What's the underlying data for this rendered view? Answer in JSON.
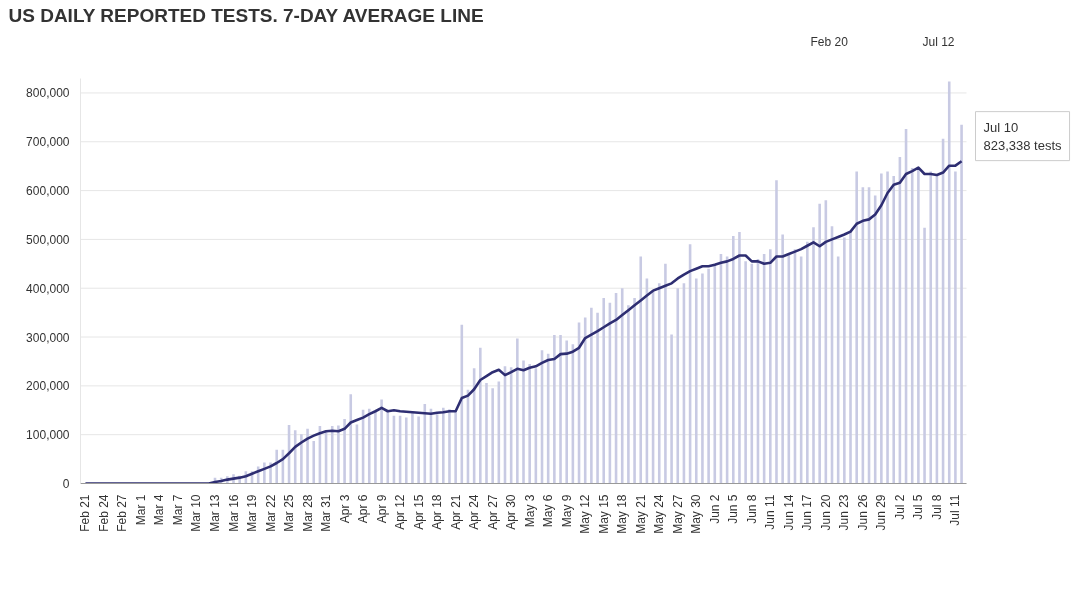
{
  "chart_data": {
    "type": "bar",
    "title": "US DAILY REPORTED TESTS. 7-DAY AVERAGE LINE",
    "categories": [
      "Feb 21",
      null,
      null,
      "Feb 24",
      null,
      null,
      "Feb 27",
      null,
      null,
      "Mar 1",
      null,
      null,
      "Mar 4",
      null,
      null,
      "Mar 7",
      null,
      null,
      "Mar 10",
      null,
      null,
      "Mar 13",
      null,
      null,
      "Mar 16",
      null,
      null,
      "Mar 19",
      null,
      null,
      "Mar 22",
      null,
      null,
      "Mar 25",
      null,
      null,
      "Mar 28",
      null,
      null,
      "Mar 31",
      null,
      null,
      "Apr 3",
      null,
      null,
      "Apr 6",
      null,
      null,
      "Apr 9",
      null,
      null,
      "Apr 12",
      null,
      null,
      "Apr 15",
      null,
      null,
      "Apr 18",
      null,
      null,
      "Apr 21",
      null,
      null,
      "Apr 24",
      null,
      null,
      "Apr 27",
      null,
      null,
      "Apr 30",
      null,
      null,
      "May 3",
      null,
      null,
      "May 6",
      null,
      null,
      "May 9",
      null,
      null,
      "May 12",
      null,
      null,
      "May 15",
      null,
      null,
      "May 18",
      null,
      null,
      "May 21",
      null,
      null,
      "May 24",
      null,
      null,
      "May 27",
      null,
      null,
      "May 30",
      null,
      null,
      "Jun 2",
      null,
      null,
      "Jun 5",
      null,
      null,
      "Jun 8",
      null,
      null,
      "Jun 11",
      null,
      null,
      "Jun 14",
      null,
      null,
      "Jun 17",
      null,
      null,
      "Jun 20",
      null,
      null,
      "Jun 23",
      null,
      null,
      "Jun 26",
      null,
      null,
      "Jun 29",
      null,
      null,
      "Jul 2",
      null,
      null,
      "Jul 5",
      null,
      null,
      "Jul 8",
      null,
      null,
      "Jul 11",
      null
    ],
    "series": [
      {
        "color": "#c8cae3",
        "values": [
          0,
          0,
          0,
          0,
          0,
          0,
          0,
          0,
          0,
          0,
          0,
          0,
          0,
          0,
          0,
          0,
          0,
          0,
          0,
          0,
          0,
          12000,
          12000,
          15000,
          19000,
          16000,
          25000,
          25000,
          35000,
          43000,
          43000,
          69000,
          69000,
          120000,
          109000,
          101000,
          112000,
          87000,
          118000,
          108000,
          118000,
          119000,
          132000,
          183000,
          121000,
          151000,
          153000,
          150000,
          172000,
          150000,
          139000,
          139000,
          135000,
          145000,
          137000,
          163000,
          153000,
          142000,
          155000,
          152000,
          149000,
          325000,
          192000,
          236000,
          278000,
          206000,
          195000,
          209000,
          240000,
          238000,
          297000,
          252000,
          245000,
          236000,
          273000,
          266000,
          304000,
          304000,
          293000,
          285000,
          330000,
          340000,
          360000,
          350000,
          380000,
          370000,
          390000,
          400000,
          365000,
          380000,
          465000,
          420000,
          395000,
          410000,
          450000,
          305000,
          400000,
          410000,
          490000,
          420000,
          430000,
          440000,
          450000,
          470000,
          465000,
          507000,
          515000,
          455000,
          450000,
          460000,
          470000,
          480000,
          621000,
          510000,
          470000,
          480000,
          465000,
          495000,
          525000,
          573000,
          580000,
          527000,
          465000,
          504000,
          515000,
          639000,
          607000,
          607000,
          590000,
          635000,
          639000,
          630000,
          669000,
          726000,
          646000,
          646000,
          524000,
          639000,
          632000,
          706000,
          823338,
          639000,
          735000
        ]
      },
      {
        "type": "line",
        "color": "#2e2e72",
        "values": [
          0,
          0,
          0,
          0,
          0,
          0,
          0,
          0,
          0,
          0,
          0,
          0,
          0,
          0,
          0,
          0,
          0,
          0,
          0,
          0,
          0,
          3000,
          5000,
          8000,
          10000,
          12000,
          15000,
          20000,
          25000,
          30000,
          35000,
          42000,
          50000,
          62000,
          75000,
          84000,
          92000,
          98000,
          103000,
          107000,
          108000,
          107000,
          112000,
          125000,
          130000,
          135000,
          142000,
          148000,
          155000,
          148000,
          150000,
          148000,
          147000,
          146000,
          145000,
          144000,
          143000,
          145000,
          146000,
          148000,
          148000,
          175000,
          180000,
          193000,
          212000,
          220000,
          228000,
          233000,
          222000,
          228000,
          235000,
          232000,
          237000,
          240000,
          247000,
          253000,
          255000,
          265000,
          266000,
          270000,
          278000,
          298000,
          305000,
          312000,
          320000,
          328000,
          335000,
          345000,
          355000,
          365000,
          375000,
          385000,
          395000,
          400000,
          405000,
          410000,
          420000,
          428000,
          435000,
          440000,
          445000,
          445000,
          448000,
          452000,
          455000,
          460000,
          467000,
          467000,
          455000,
          455000,
          450000,
          452000,
          465000,
          465000,
          470000,
          475000,
          480000,
          487000,
          494000,
          486000,
          495000,
          500000,
          505000,
          510000,
          516000,
          532000,
          538000,
          541000,
          551000,
          570000,
          595000,
          612000,
          616000,
          634000,
          640000,
          647000,
          634000,
          634000,
          632000,
          637000,
          651000,
          651000,
          660000
        ]
      }
    ],
    "ylim": [
      0,
      830000
    ],
    "yticks": [
      0,
      {
        "value": 100000,
        "label": "100,000"
      },
      {
        "value": 200000,
        "label": "200,000"
      },
      {
        "value": 300000,
        "label": "300,000"
      },
      {
        "value": 400000,
        "label": "400,000"
      },
      {
        "value": 500000,
        "label": "500,000"
      },
      {
        "value": 600000,
        "label": "600,000"
      },
      {
        "value": 700000,
        "label": "700,000"
      },
      {
        "value": 800000,
        "label": "800,000"
      }
    ],
    "grid": "y",
    "line_style": "solid",
    "annotations": [
      "Jul 10\n823,338 tests",
      "Feb 20",
      "Jul 12"
    ]
  }
}
